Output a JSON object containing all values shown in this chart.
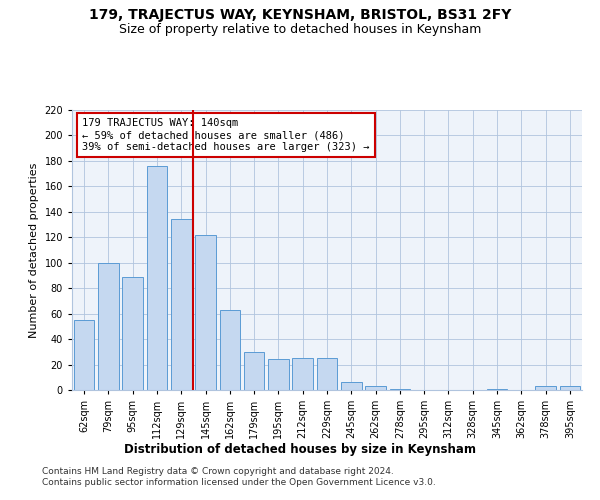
{
  "title": "179, TRAJECTUS WAY, KEYNSHAM, BRISTOL, BS31 2FY",
  "subtitle": "Size of property relative to detached houses in Keynsham",
  "xlabel": "Distribution of detached houses by size in Keynsham",
  "ylabel": "Number of detached properties",
  "categories": [
    "62sqm",
    "79sqm",
    "95sqm",
    "112sqm",
    "129sqm",
    "145sqm",
    "162sqm",
    "179sqm",
    "195sqm",
    "212sqm",
    "229sqm",
    "245sqm",
    "262sqm",
    "278sqm",
    "295sqm",
    "312sqm",
    "328sqm",
    "345sqm",
    "362sqm",
    "378sqm",
    "395sqm"
  ],
  "values": [
    55,
    100,
    89,
    176,
    134,
    122,
    63,
    30,
    24,
    25,
    25,
    6,
    3,
    1,
    0,
    0,
    0,
    1,
    0,
    3,
    3
  ],
  "bar_color": "#c5d8f0",
  "bar_edge_color": "#5b9bd5",
  "vline_x": 4.5,
  "vline_color": "#cc0000",
  "annotation_text": "179 TRAJECTUS WAY: 140sqm\n← 59% of detached houses are smaller (486)\n39% of semi-detached houses are larger (323) →",
  "annotation_box_color": "#ffffff",
  "annotation_box_edge": "#cc0000",
  "ylim": [
    0,
    220
  ],
  "yticks": [
    0,
    20,
    40,
    60,
    80,
    100,
    120,
    140,
    160,
    180,
    200,
    220
  ],
  "footer": "Contains HM Land Registry data © Crown copyright and database right 2024.\nContains public sector information licensed under the Open Government Licence v3.0.",
  "bg_color": "#eef3fa",
  "plot_bg_color": "#eef3fa",
  "title_fontsize": 10,
  "subtitle_fontsize": 9,
  "axis_label_fontsize": 8,
  "tick_fontsize": 7,
  "annotation_fontsize": 7.5,
  "footer_fontsize": 6.5
}
